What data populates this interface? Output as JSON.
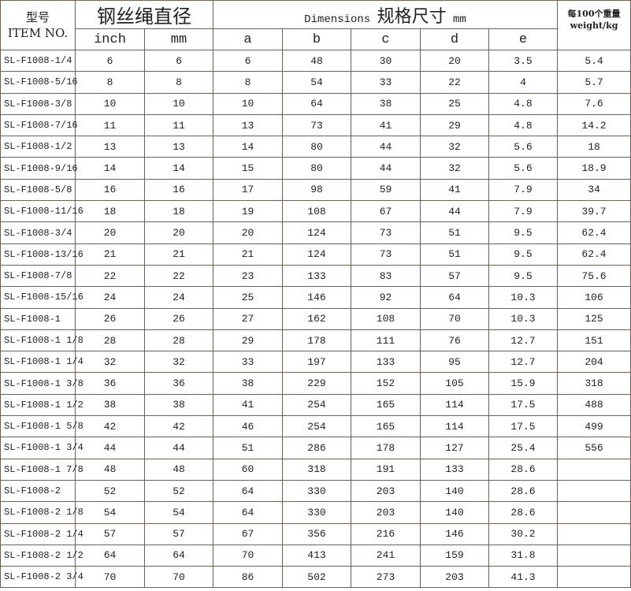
{
  "header": {
    "model_cn": "型号",
    "model_en": "ITEM NO.",
    "diameter": "钢丝绳直径",
    "dims_en": "Dimensions",
    "dims_cn": "规格尺寸",
    "dims_unit": "mm",
    "weight_cn": "每100个重量",
    "weight_en": "weight/kg",
    "cols": [
      "inch",
      "mm",
      "a",
      "b",
      "c",
      "d",
      "e"
    ]
  },
  "rows": [
    [
      "SL-F1008-1/4",
      "6",
      "6",
      "6",
      "48",
      "30",
      "20",
      "3.5",
      "5.4"
    ],
    [
      "SL-F1008-5/16",
      "8",
      "8",
      "8",
      "54",
      "33",
      "22",
      "4",
      "5.7"
    ],
    [
      "SL-F1008-3/8",
      "10",
      "10",
      "10",
      "64",
      "38",
      "25",
      "4.8",
      "7.6"
    ],
    [
      "SL-F1008-7/16",
      "11",
      "11",
      "13",
      "73",
      "41",
      "29",
      "4.8",
      "14.2"
    ],
    [
      "SL-F1008-1/2",
      "13",
      "13",
      "14",
      "80",
      "44",
      "32",
      "5.6",
      "18"
    ],
    [
      "SL-F1008-9/16",
      "14",
      "14",
      "15",
      "80",
      "44",
      "32",
      "5.6",
      "18.9"
    ],
    [
      "SL-F1008-5/8",
      "16",
      "16",
      "17",
      "98",
      "59",
      "41",
      "7.9",
      "34"
    ],
    [
      "SL-F1008-11/16",
      "18",
      "18",
      "19",
      "108",
      "67",
      "44",
      "7.9",
      "39.7"
    ],
    [
      "SL-F1008-3/4",
      "20",
      "20",
      "20",
      "124",
      "73",
      "51",
      "9.5",
      "62.4"
    ],
    [
      "SL-F1008-13/16",
      "21",
      "21",
      "21",
      "124",
      "73",
      "51",
      "9.5",
      "62.4"
    ],
    [
      "SL-F1008-7/8",
      "22",
      "22",
      "23",
      "133",
      "83",
      "57",
      "9.5",
      "75.6"
    ],
    [
      "SL-F1008-15/16",
      "24",
      "24",
      "25",
      "146",
      "92",
      "64",
      "10.3",
      "106"
    ],
    [
      "SL-F1008-1",
      "26",
      "26",
      "27",
      "162",
      "108",
      "70",
      "10.3",
      "125"
    ],
    [
      "SL-F1008-1 1/8",
      "28",
      "28",
      "29",
      "178",
      "111",
      "76",
      "12.7",
      "151"
    ],
    [
      "SL-F1008-1 1/4",
      "32",
      "32",
      "33",
      "197",
      "133",
      "95",
      "12.7",
      "204"
    ],
    [
      "SL-F1008-1 3/8",
      "36",
      "36",
      "38",
      "229",
      "152",
      "105",
      "15.9",
      "318"
    ],
    [
      "SL-F1008-1 1/2",
      "38",
      "38",
      "41",
      "254",
      "165",
      "114",
      "17.5",
      "488"
    ],
    [
      "SL-F1008-1 5/8",
      "42",
      "42",
      "46",
      "254",
      "165",
      "114",
      "17.5",
      "499"
    ],
    [
      "SL-F1008-1 3/4",
      "44",
      "44",
      "51",
      "286",
      "178",
      "127",
      "25.4",
      "556"
    ],
    [
      "SL-F1008-1 7/8",
      "48",
      "48",
      "60",
      "318",
      "191",
      "133",
      "28.6",
      ""
    ],
    [
      "SL-F1008-2",
      "52",
      "52",
      "64",
      "330",
      "203",
      "140",
      "28.6",
      ""
    ],
    [
      "SL-F1008-2 1/8",
      "54",
      "54",
      "64",
      "330",
      "203",
      "140",
      "28.6",
      ""
    ],
    [
      "SL-F1008-2 1/4",
      "57",
      "57",
      "67",
      "356",
      "216",
      "146",
      "30.2",
      ""
    ],
    [
      "SL-F1008-2 1/2",
      "64",
      "64",
      "70",
      "413",
      "241",
      "159",
      "31.8",
      ""
    ],
    [
      "SL-F1008-2 3/4",
      "70",
      "70",
      "86",
      "502",
      "273",
      "203",
      "41.3",
      ""
    ]
  ]
}
